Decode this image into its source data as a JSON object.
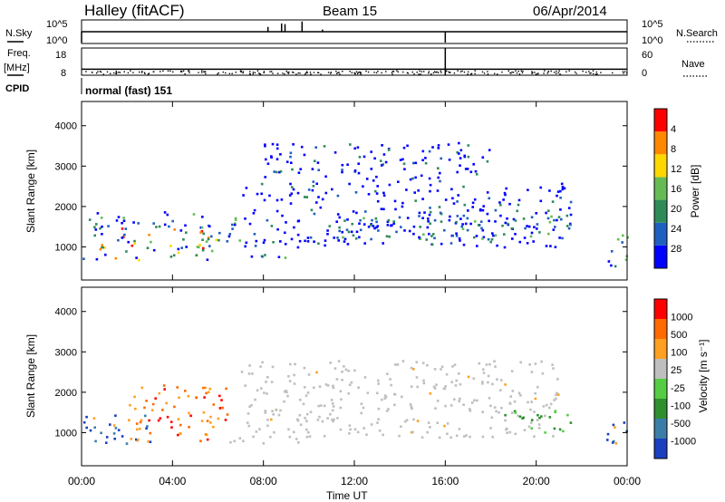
{
  "header": {
    "station": "Halley (fitACF)",
    "beam": "Beam 15",
    "date": "06/Apr/2014"
  },
  "chart_data": [
    {
      "type": "line",
      "panel": "noise",
      "left_label": "N.Sky",
      "right_label": "N.Search",
      "left_ticks": [
        "10^5",
        "10^0"
      ],
      "right_ticks": [
        "10^5",
        "10^0"
      ],
      "xlim": [
        0,
        24
      ],
      "baseline_level": 0.5,
      "spikes": [
        {
          "x": 8.2,
          "value": 0.72
        },
        {
          "x": 8.8,
          "value": 0.88
        },
        {
          "x": 8.95,
          "value": 0.85
        },
        {
          "x": 9.7,
          "value": 0.97
        },
        {
          "x": 10.6,
          "value": 0.6
        },
        {
          "x": 16.0,
          "value": 0.0
        }
      ]
    },
    {
      "type": "scatter",
      "panel": "frequency",
      "left_label": "Freq.",
      "left_unit": "[MHz]",
      "right_label": "Nave",
      "left_ticks": [
        18,
        8
      ],
      "right_ticks": [
        60,
        0
      ],
      "ylim": [
        8,
        18
      ],
      "xlim": [
        0,
        24
      ],
      "frequency_level": 10.2,
      "cpid_label": "CPID",
      "cpid_text": "normal (fast) 151"
    },
    {
      "type": "heatmap",
      "panel": "power",
      "xlabel": "",
      "ylabel": "Slant Range [km]",
      "xlim": [
        0,
        24
      ],
      "ylim": [
        180,
        4600
      ],
      "y_ticks": [
        1000,
        2000,
        3000,
        4000
      ],
      "colorbar_label": "Power [dB]",
      "colorbar_ticks": [
        4,
        8,
        12,
        16,
        20,
        24,
        28
      ],
      "colors": [
        "#0000ff",
        "#1f5fbf",
        "#2e8b57",
        "#66bb55",
        "#ffd700",
        "#ff8800",
        "#ff0000"
      ],
      "scatter_regions": [
        {
          "t": [
            0.0,
            6.4
          ],
          "r": [
            700,
            1500
          ],
          "level": "high"
        },
        {
          "t": [
            0.2,
            5.5
          ],
          "r": [
            1500,
            1900
          ],
          "level": "medium"
        },
        {
          "t": [
            5.0,
            7.0
          ],
          "r": [
            900,
            1800
          ],
          "level": "medium"
        },
        {
          "t": [
            6.5,
            9.0
          ],
          "r": [
            700,
            900
          ],
          "level": "medium"
        },
        {
          "t": [
            7.0,
            21.5
          ],
          "r": [
            1000,
            2600
          ],
          "level": "low"
        },
        {
          "t": [
            11.0,
            21.5
          ],
          "r": [
            1200,
            1800
          ],
          "level": "medium"
        },
        {
          "t": [
            8.0,
            18.0
          ],
          "r": [
            2600,
            3600
          ],
          "level": "low"
        },
        {
          "t": [
            23.0,
            24.0
          ],
          "r": [
            500,
            1400
          ],
          "level": "medium"
        }
      ]
    },
    {
      "type": "heatmap",
      "panel": "velocity",
      "xlabel": "Time UT",
      "ylabel": "Slant Range [km]",
      "xlim": [
        0,
        24
      ],
      "ylim": [
        180,
        4600
      ],
      "y_ticks": [
        1000,
        2000,
        3000,
        4000
      ],
      "x_ticks": [
        "00:00",
        "04:00",
        "08:00",
        "12:00",
        "16:00",
        "20:00",
        "00:00"
      ],
      "colorbar_label": "Velocity [m s⁻¹]",
      "colorbar_ticks": [
        1000,
        500,
        100,
        25,
        -25,
        -100,
        -500,
        -1000
      ],
      "colors": [
        "#1a3fbf",
        "#3a7ea8",
        "#2f8f2f",
        "#55cc44",
        "#bfbfbf",
        "#ffa020",
        "#ff6a00",
        "#ff0000"
      ],
      "scatter_regions": [
        {
          "t": [
            0.0,
            3.0
          ],
          "r": [
            700,
            1500
          ],
          "level": "toward"
        },
        {
          "t": [
            2.0,
            6.4
          ],
          "r": [
            800,
            2200
          ],
          "level": "away"
        },
        {
          "t": [
            6.5,
            9.5
          ],
          "r": [
            700,
            900
          ],
          "level": "ground"
        },
        {
          "t": [
            7.0,
            21.0
          ],
          "r": [
            900,
            2800
          ],
          "level": "ground"
        },
        {
          "t": [
            18.5,
            21.5
          ],
          "r": [
            1000,
            1600
          ],
          "level": "slow-toward"
        },
        {
          "t": [
            23.0,
            24.0
          ],
          "r": [
            500,
            1300
          ],
          "level": "toward"
        }
      ]
    }
  ]
}
